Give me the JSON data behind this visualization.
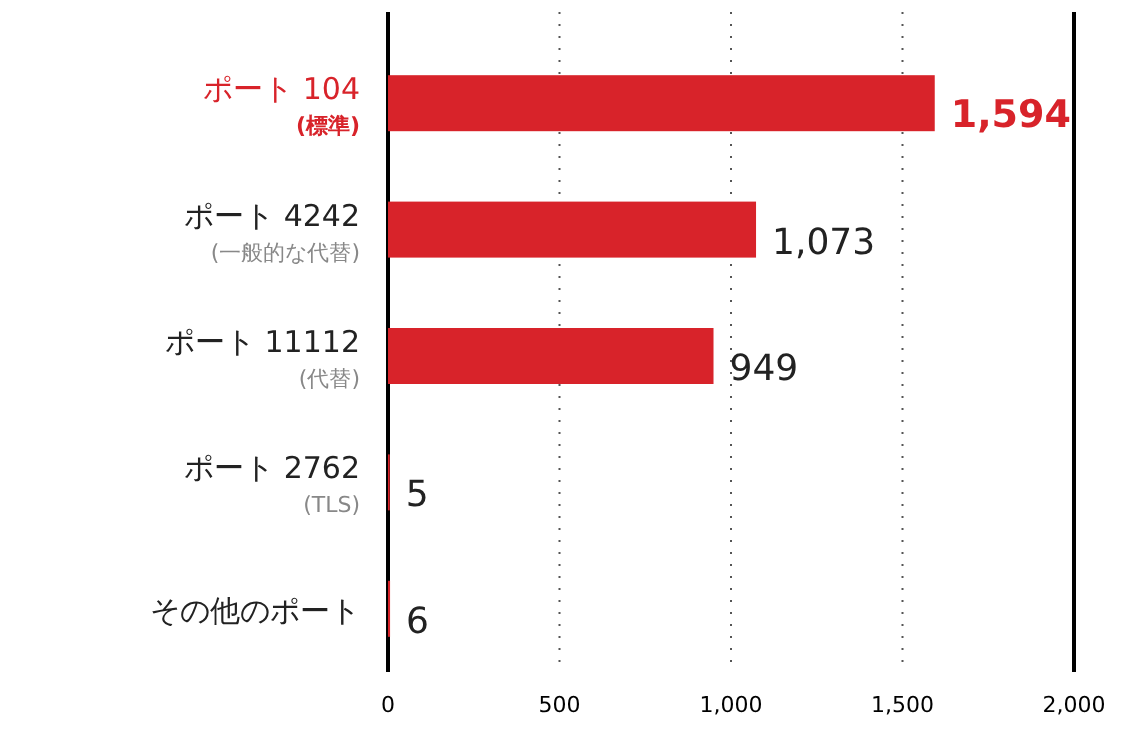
{
  "chart_data": {
    "type": "bar",
    "orientation": "horizontal",
    "categories": [
      "ポート 104\n(標準)",
      "ポート 4242\n(一般的な代替)",
      "ポート 11112\n(代替)",
      "ポート 2762\n(TLS)",
      "その他のポート"
    ],
    "values": [
      1594,
      1073,
      949,
      5,
      6
    ],
    "color": "#d8232a",
    "value_labels": [
      "1,594",
      "1,073",
      "949",
      "5",
      "6"
    ],
    "xlim": [
      0,
      2000
    ],
    "xticks": [
      0,
      500,
      {
        "value": 1000,
        "label": "1,000"
      },
      {
        "value": 1500,
        "label": "1,500"
      },
      {
        "value": 2000,
        "label": "2,000"
      }
    ],
    "grid": "x"
  }
}
